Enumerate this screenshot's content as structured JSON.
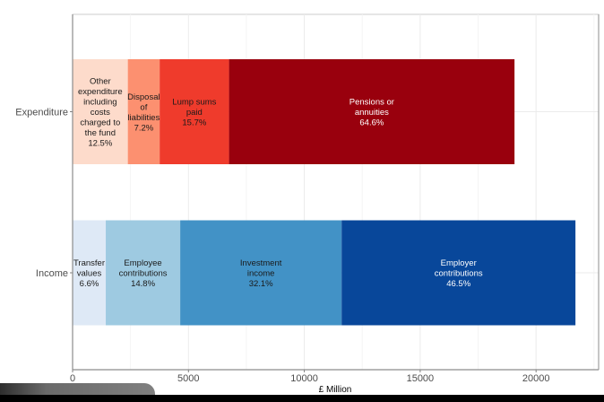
{
  "chart_data": {
    "type": "bar",
    "orientation": "horizontal",
    "stacked": true,
    "title": "",
    "xlabel": "£ Million",
    "ylabel": "",
    "xlim": [
      0,
      22700
    ],
    "x_ticks": [
      0,
      5000,
      10000,
      15000,
      20000
    ],
    "x_tick_labels": [
      "0",
      "5000",
      "10000",
      "15000",
      "20000"
    ],
    "grid": true,
    "legend": "none",
    "categories": [
      "Expenditure",
      "Income"
    ],
    "bars": [
      {
        "category": "Expenditure",
        "total": 19070,
        "segments": [
          {
            "name": "Other expenditure including costs charged to the fund",
            "label_lines": [
              "Other",
              "expenditure",
              "including",
              "costs",
              "charged to",
              "the fund",
              "12.5%"
            ],
            "value": 2384,
            "percent": "12.5%",
            "color": "#fddbcb",
            "text_color": "#1a1a1a"
          },
          {
            "name": "Disposal of liabilities",
            "label_lines": [
              "Disposal",
              "of",
              "liabilities",
              "7.2%"
            ],
            "value": 1373,
            "percent": "7.2%",
            "color": "#fc9070",
            "text_color": "#1a1a1a"
          },
          {
            "name": "Lump sums paid",
            "label_lines": [
              "Lump sums",
              "paid",
              "15.7%"
            ],
            "value": 2994,
            "percent": "15.7%",
            "color": "#ef3b2c",
            "text_color": "#1a1a1a"
          },
          {
            "name": "Pensions or annuities",
            "label_lines": [
              "Pensions or",
              "annuities",
              "64.6%"
            ],
            "value": 12319,
            "percent": "64.6%",
            "color": "#99000d",
            "text_color": "#ffffff"
          }
        ]
      },
      {
        "category": "Income",
        "total": 21700,
        "segments": [
          {
            "name": "Transfer values",
            "label_lines": [
              "Transfer",
              "values",
              "6.6%"
            ],
            "value": 1432,
            "percent": "6.6%",
            "color": "#dee9f6",
            "text_color": "#1a1a1a"
          },
          {
            "name": "Employee contributions",
            "label_lines": [
              "Employee",
              "contributions",
              "14.8%"
            ],
            "value": 3212,
            "percent": "14.8%",
            "color": "#9ecae1",
            "text_color": "#1a1a1a"
          },
          {
            "name": "Investment income",
            "label_lines": [
              "Investment",
              "income",
              "32.1%"
            ],
            "value": 6966,
            "percent": "32.1%",
            "color": "#4292c6",
            "text_color": "#1a1a1a"
          },
          {
            "name": "Employer contributions",
            "label_lines": [
              "Employer",
              "contributions",
              "46.5%"
            ],
            "value": 10090,
            "percent": "46.5%",
            "color": "#08479a",
            "text_color": "#ffffff"
          }
        ]
      }
    ]
  }
}
